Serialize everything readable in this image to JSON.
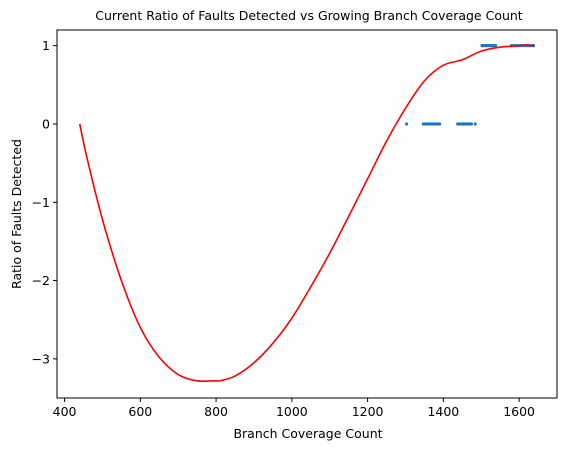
{
  "chart_data": {
    "type": "scatter",
    "title": "Current Ratio of Faults Detected vs Growing Branch Coverage Count",
    "xlabel": "Branch Coverage Count",
    "ylabel": "Ratio of Faults Detected",
    "xlim": [
      380,
      1700
    ],
    "ylim": [
      -3.5,
      1.2
    ],
    "xticks": [
      400,
      600,
      800,
      1000,
      1200,
      1400,
      1600
    ],
    "yticks": [
      -3,
      -2,
      -1,
      0,
      1
    ],
    "grid": false,
    "legend": "none",
    "colors": {
      "scatter": "#1f77b4",
      "fit_line": "#ff0000"
    },
    "scatter_points": [
      [
        1303,
        0
      ],
      [
        1347,
        0
      ],
      [
        1352,
        0
      ],
      [
        1356,
        0
      ],
      [
        1360,
        0
      ],
      [
        1364,
        0
      ],
      [
        1368,
        0
      ],
      [
        1372,
        0
      ],
      [
        1376,
        0
      ],
      [
        1380,
        0
      ],
      [
        1385,
        0
      ],
      [
        1390,
        0
      ],
      [
        1438,
        0
      ],
      [
        1442,
        0
      ],
      [
        1446,
        0
      ],
      [
        1450,
        0
      ],
      [
        1454,
        0
      ],
      [
        1458,
        0
      ],
      [
        1462,
        0
      ],
      [
        1466,
        0
      ],
      [
        1470,
        0
      ],
      [
        1474,
        0
      ],
      [
        1484,
        0
      ],
      [
        1502,
        1
      ],
      [
        1506,
        1
      ],
      [
        1510,
        1
      ],
      [
        1514,
        1
      ],
      [
        1518,
        1
      ],
      [
        1522,
        1
      ],
      [
        1526,
        1
      ],
      [
        1530,
        1
      ],
      [
        1534,
        1
      ],
      [
        1538,
        1
      ],
      [
        1580,
        1
      ],
      [
        1586,
        1
      ],
      [
        1592,
        1
      ],
      [
        1598,
        1
      ],
      [
        1604,
        1
      ],
      [
        1610,
        1
      ],
      [
        1616,
        1
      ],
      [
        1622,
        1
      ],
      [
        1628,
        1
      ],
      [
        1634,
        1
      ],
      [
        1638,
        1
      ]
    ],
    "fit_line": {
      "x": [
        440,
        460,
        500,
        550,
        600,
        650,
        700,
        750,
        800,
        810,
        850,
        900,
        950,
        1000,
        1050,
        1100,
        1150,
        1200,
        1250,
        1300,
        1350,
        1400,
        1450,
        1500,
        1550,
        1600,
        1620,
        1640
      ],
      "y": [
        0.0,
        -0.45,
        -1.22,
        -2.0,
        -2.6,
        -2.98,
        -3.2,
        -3.28,
        -3.28,
        -3.28,
        -3.22,
        -3.05,
        -2.8,
        -2.48,
        -2.08,
        -1.65,
        -1.18,
        -0.7,
        -0.22,
        0.2,
        0.55,
        0.75,
        0.82,
        0.93,
        0.98,
        1.0,
        1.01,
        1.0
      ]
    }
  }
}
